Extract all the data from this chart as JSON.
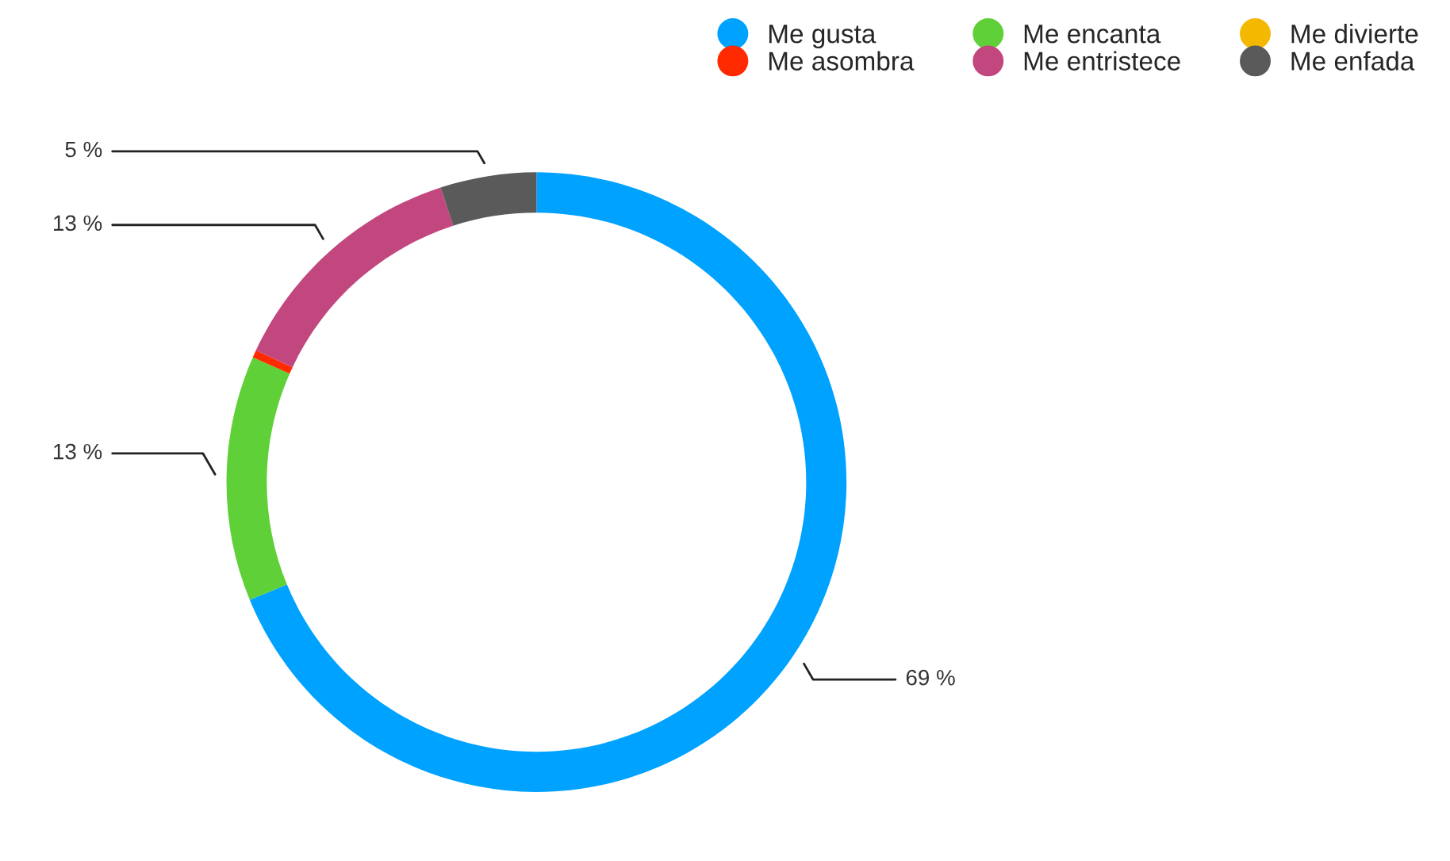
{
  "chart_data": {
    "type": "donut",
    "categories": [
      "Me gusta",
      "Me encanta",
      "Me divierte",
      "Me asombra",
      "Me entristece",
      "Me enfada"
    ],
    "values": [
      68.8,
      12.8,
      0,
      0.4,
      13.0,
      5.0
    ],
    "colors": [
      "#00a2ff",
      "#5fd038",
      "#f5b800",
      "#ff2a00",
      "#c2477e",
      "#5a5a5a"
    ],
    "value_labels": [
      "69 %",
      "13 %",
      null,
      null,
      "13 %",
      "5 %"
    ],
    "legend": "top right"
  }
}
